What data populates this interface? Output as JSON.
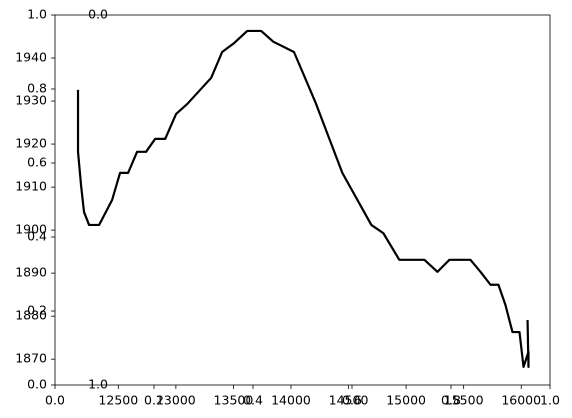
{
  "chart_data": {
    "type": "line",
    "x": [
      12150,
      12150,
      12176,
      12202,
      12246,
      12333,
      12446,
      12515,
      12585,
      12663,
      12741,
      12820,
      12907,
      13002,
      13098,
      13307,
      13402,
      13507,
      13620,
      13741,
      13846,
      14026,
      14211,
      14446,
      14698,
      14802,
      14941,
      15159,
      15272,
      15376,
      15559,
      15646,
      15733,
      15802,
      15863,
      15924,
      15985,
      16020,
      16063,
      16063,
      16055
    ],
    "series": [
      {
        "color": "#000000",
        "values": [
          1932.6,
          1918.2,
          1910.5,
          1904.2,
          1901.2,
          1901.2,
          1907,
          1913.3,
          1913.3,
          1918.2,
          1918.2,
          1921.2,
          1921.2,
          1927,
          1929.3,
          1935.4,
          1941.4,
          1943.5,
          1946.3,
          1946.3,
          1943.8,
          1941.4,
          1929.8,
          1913.3,
          1901.2,
          1899.3,
          1893.1,
          1893.1,
          1890.3,
          1893.1,
          1893.1,
          1890.3,
          1887.3,
          1887.3,
          1882.6,
          1876.3,
          1876.3,
          1868.2,
          1871.7,
          1868.2,
          1879.1
        ]
      }
    ],
    "xlim": [
      11950,
      16250
    ],
    "ylim": [
      1864,
      1950
    ],
    "xticks": [
      12500,
      13000,
      13500,
      14000,
      14500,
      15000,
      15500,
      16000
    ],
    "yticks": [
      1870,
      1880,
      1890,
      1900,
      1910,
      1920,
      1930,
      1940
    ],
    "overlay_axis": {
      "xlim": [
        0,
        1
      ],
      "ylim": [
        0,
        1
      ],
      "xticks": [
        {
          "value": 0,
          "label": "0.0"
        },
        0.2,
        0.4,
        0.6,
        0.8,
        {
          "value": 1,
          "label": "1.0"
        }
      ],
      "yticks": [
        {
          "value": 0,
          "label": "0.0"
        },
        0.2,
        0.4,
        0.6,
        0.8,
        {
          "value": 1,
          "label": "1.0"
        }
      ]
    },
    "inverted_axis": {
      "ylim": [
        1,
        0
      ],
      "yticks": [
        {
          "value": 0,
          "label": "0.0"
        },
        {
          "value": 1,
          "label": "1.0"
        }
      ]
    }
  }
}
